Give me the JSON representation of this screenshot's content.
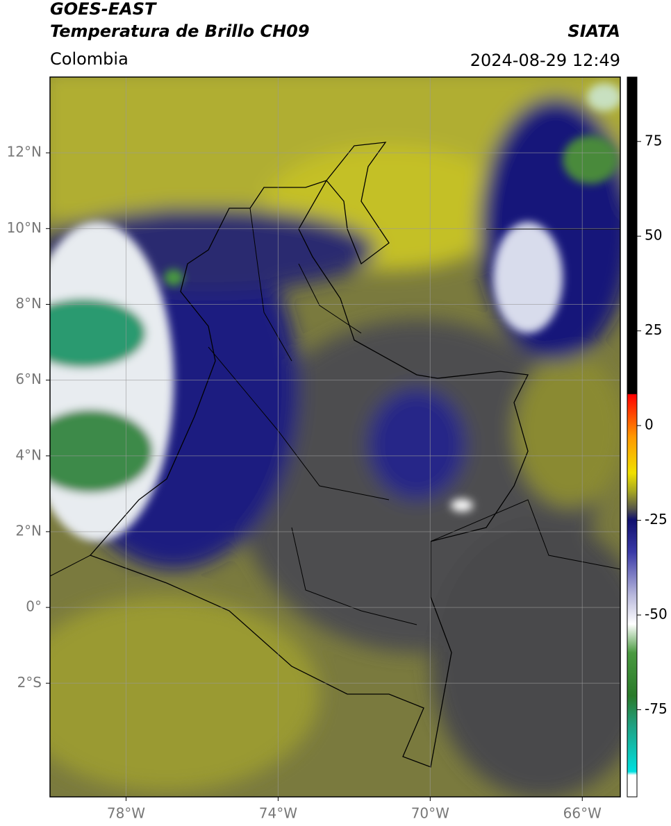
{
  "header": {
    "title": "GOES-EAST",
    "subtitle": "Temperatura de Brillo CH09",
    "region": "Colombia",
    "source": "SIATA",
    "timestamp": "2024-08-29 12:49"
  },
  "map": {
    "xlim": [
      -80,
      -65
    ],
    "ylim": [
      -5,
      14
    ],
    "xticks": [
      {
        "value": -78,
        "label": "78°W"
      },
      {
        "value": -74,
        "label": "74°W"
      },
      {
        "value": -70,
        "label": "70°W"
      },
      {
        "value": -66,
        "label": "66°W"
      }
    ],
    "yticks": [
      {
        "value": 12,
        "label": "12°N"
      },
      {
        "value": 10,
        "label": "10°N"
      },
      {
        "value": 8,
        "label": "8°N"
      },
      {
        "value": 6,
        "label": "6°N"
      },
      {
        "value": 4,
        "label": "4°N"
      },
      {
        "value": 2,
        "label": "2°N"
      },
      {
        "value": 0,
        "label": "0°"
      },
      {
        "value": -2,
        "label": "2°S"
      }
    ],
    "grid": true
  },
  "colorbar": {
    "lim": [
      -98,
      92
    ],
    "ticks": [
      75,
      50,
      25,
      0,
      -25,
      -50,
      -75
    ]
  }
}
